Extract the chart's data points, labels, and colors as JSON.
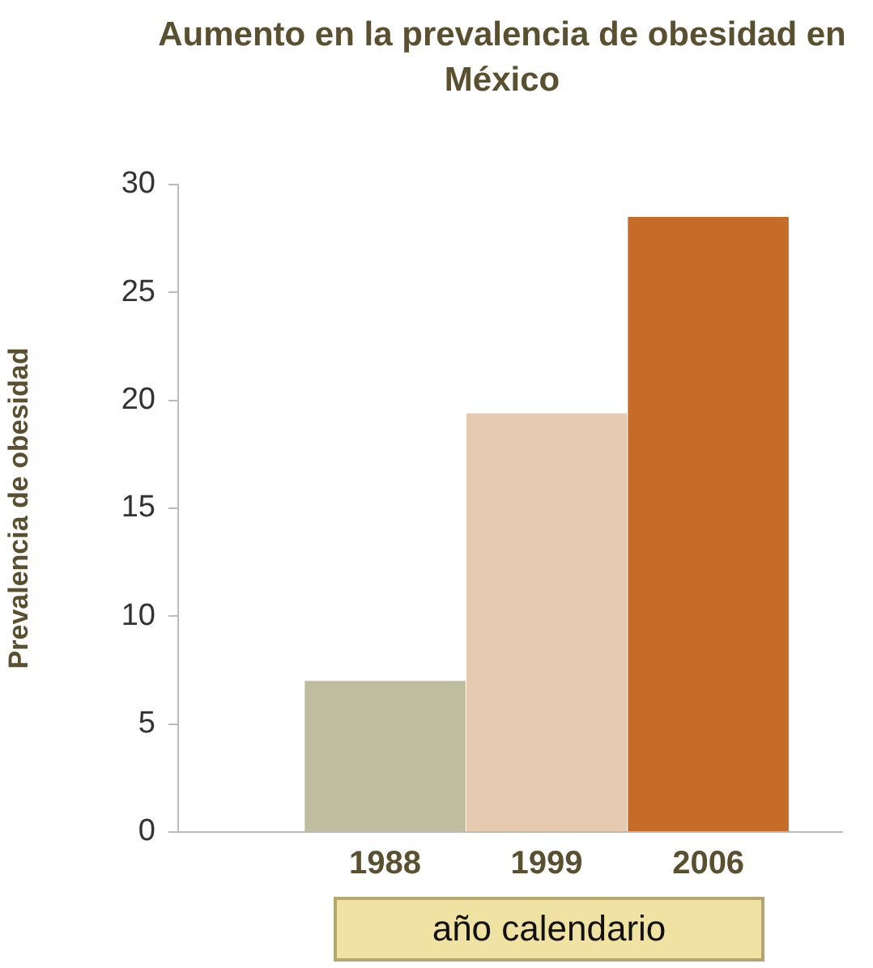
{
  "chart_data": {
    "type": "bar",
    "title": "Aumento en la prevalencia de obesidad en México",
    "xlabel": "año calendario",
    "ylabel": "Prevalencia de obesidad",
    "categories": [
      "1988",
      "1999",
      "2006"
    ],
    "values": [
      7,
      19.4,
      28.5
    ],
    "colors": [
      "#bfbd9f",
      "#e5cab0",
      "#c46c28"
    ],
    "ylim": [
      0,
      30
    ],
    "yticks": [
      0,
      5,
      10,
      15,
      20,
      25,
      30
    ],
    "grid": false,
    "legend": false
  }
}
